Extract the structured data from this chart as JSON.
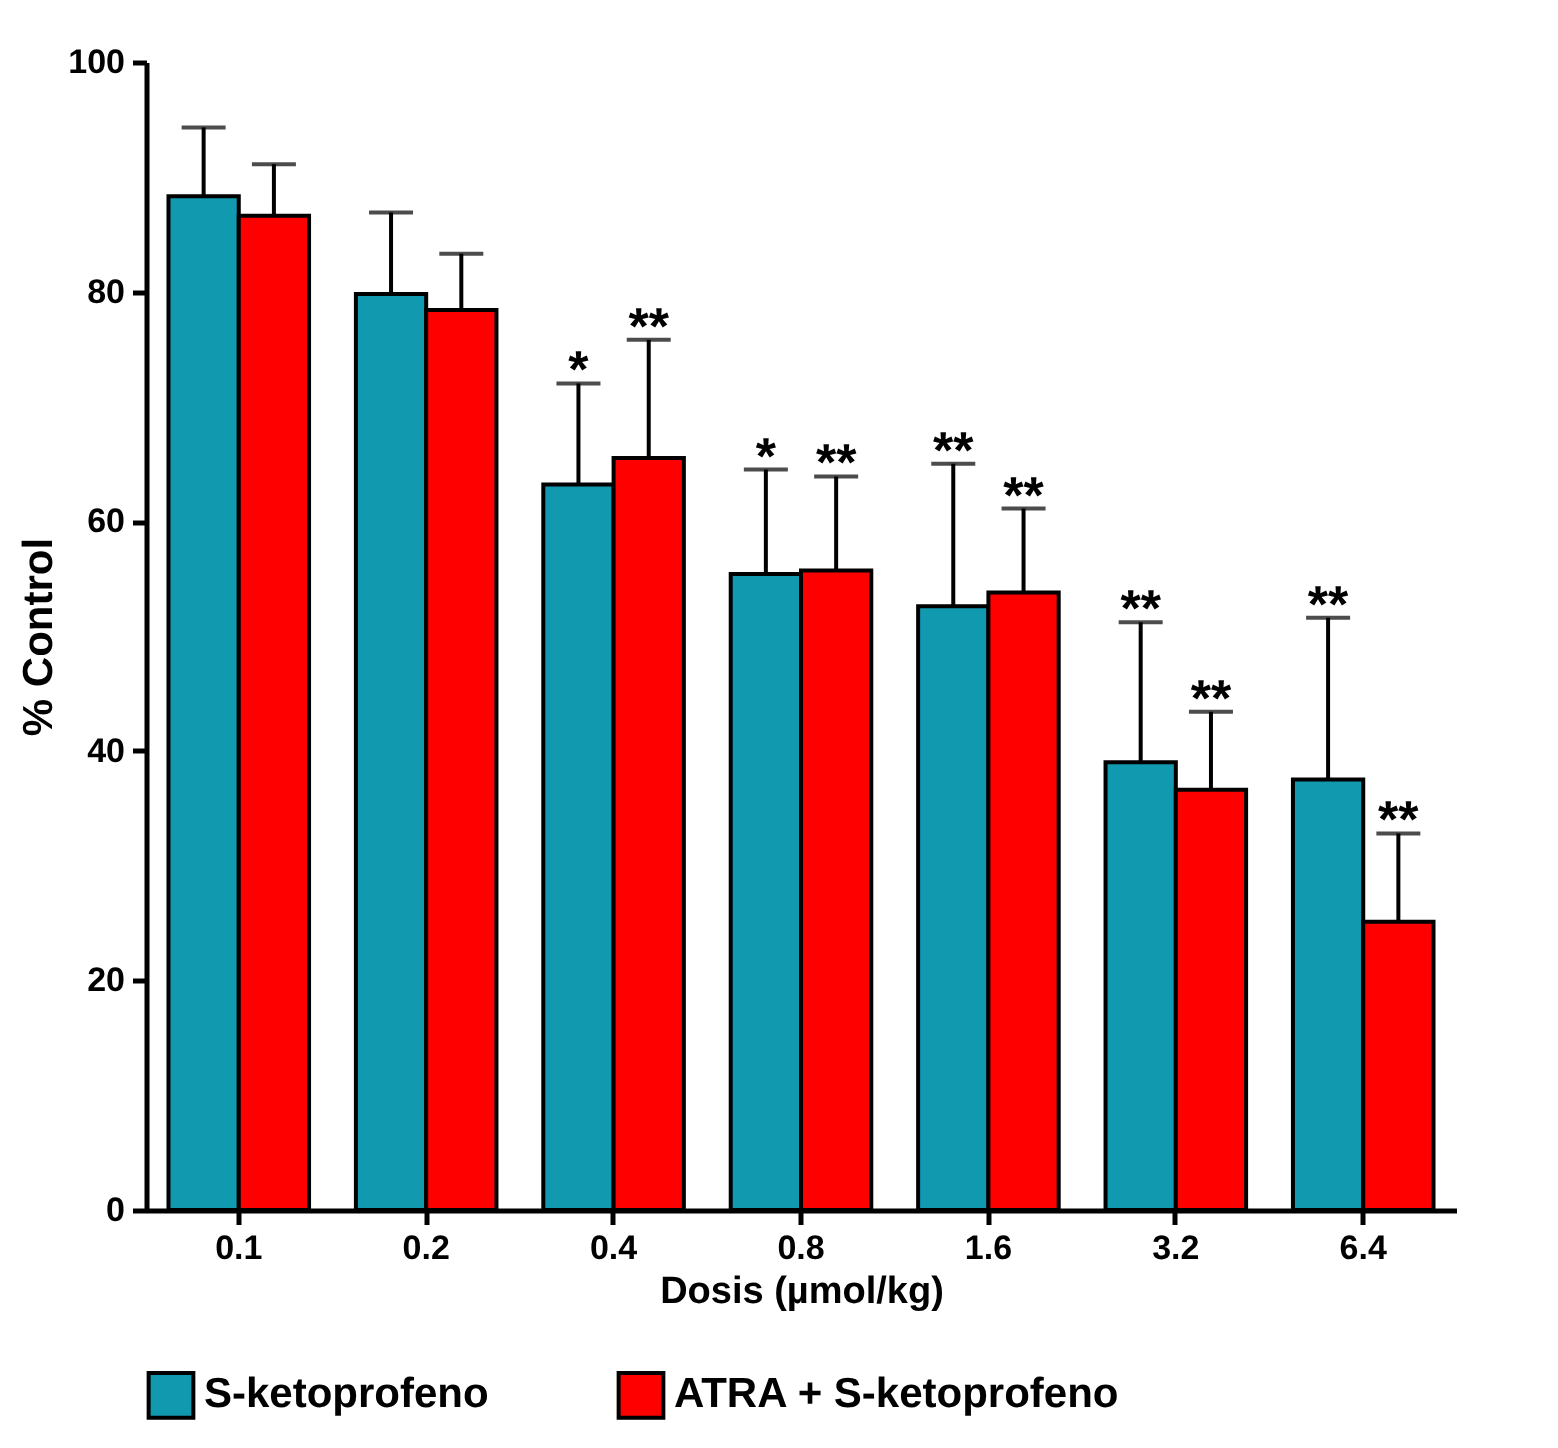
{
  "chart_data": {
    "type": "bar",
    "xlabel": "Dosis (µmol/kg)",
    "ylabel": "% Control",
    "categories": [
      "0.1",
      "0.2",
      "0.4",
      "0.8",
      "1.6",
      "3.2",
      "6.4"
    ],
    "series": [
      {
        "name": "S-ketoprofeno",
        "color": "#1199b0",
        "values": [
          88.3,
          79.8,
          63.2,
          55.4,
          52.6,
          39.0,
          37.5
        ],
        "errors": [
          [
            88.3,
            94.3
          ],
          [
            79.8,
            86.9
          ],
          [
            63.2,
            72.0
          ],
          [
            55.4,
            64.5
          ],
          [
            52.6,
            65.0
          ],
          [
            39.0,
            51.2
          ],
          [
            37.5,
            51.6
          ]
        ]
      },
      {
        "name": "ATRA + S-ketoprofeno",
        "color": "#ff0000",
        "values": [
          86.6,
          78.4,
          65.5,
          55.7,
          53.8,
          36.6,
          25.1
        ],
        "errors": [
          [
            86.6,
            91.1
          ],
          [
            78.4,
            83.3
          ],
          [
            65.5,
            75.8
          ],
          [
            55.7,
            63.9
          ],
          [
            53.8,
            61.1
          ],
          [
            36.6,
            43.4
          ],
          [
            25.1,
            32.8
          ]
        ]
      }
    ],
    "ylim": [
      0,
      100
    ],
    "yticks": [
      0,
      20,
      40,
      60,
      80,
      100
    ],
    "legend": "bottom",
    "annotations": [
      "*",
      "**",
      "*",
      "**",
      "**",
      "**",
      "**",
      "**",
      "**",
      "**"
    ]
  }
}
